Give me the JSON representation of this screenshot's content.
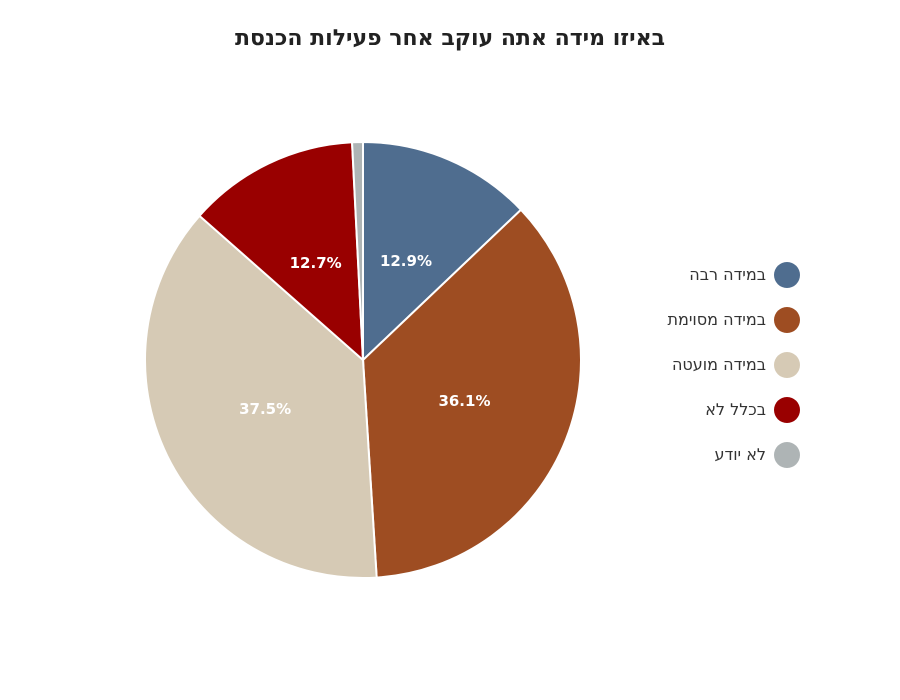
{
  "chart_data": {
    "type": "pie",
    "title": "באיזו מידה אתה עוקב אחר פעילות הכנסת",
    "categories": [
      "במידה רבה",
      "במידה מסוימת",
      "במידה מועטה",
      "בכלל לא",
      "לא יודע"
    ],
    "values": [
      12.9,
      36.1,
      37.5,
      12.7,
      0.8
    ],
    "data_labels": [
      "12.9%",
      "36.1%",
      "37.5%",
      "12.7%",
      ""
    ],
    "colors": [
      "#4f6d8f",
      "#9e4d22",
      "#d6cab5",
      "#990000",
      "#aeb4b5"
    ],
    "legend": "right",
    "start_direction": "top",
    "direction": "clockwise"
  }
}
